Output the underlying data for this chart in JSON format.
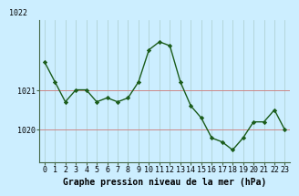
{
  "hours": [
    0,
    1,
    2,
    3,
    4,
    5,
    6,
    7,
    8,
    9,
    10,
    11,
    12,
    13,
    14,
    15,
    16,
    17,
    18,
    19,
    20,
    21,
    22,
    23
  ],
  "pressure": [
    1021.7,
    1021.2,
    1020.7,
    1021.0,
    1021.0,
    1020.7,
    1020.8,
    1020.7,
    1020.8,
    1021.2,
    1022.0,
    1022.2,
    1022.1,
    1021.2,
    1020.6,
    1020.3,
    1019.8,
    1019.7,
    1019.5,
    1019.8,
    1020.2,
    1020.2,
    1020.5,
    1020.0
  ],
  "line_color": "#1a5c1a",
  "marker": "D",
  "marker_size": 2.2,
  "bg_color": "#cceeff",
  "grid_color_h": "#cc8888",
  "grid_color_v": "#aacccc",
  "xlabel": "Graphe pression niveau de la mer (hPa)",
  "xlabel_fontsize": 7,
  "ytick_labels": [
    "1020",
    "1021"
  ],
  "ytick_values": [
    1020,
    1021
  ],
  "top_ylabel": "1022",
  "ylim": [
    1019.2,
    1022.75
  ],
  "xlim": [
    -0.5,
    23.5
  ],
  "xticks": [
    0,
    1,
    2,
    3,
    4,
    5,
    6,
    7,
    8,
    9,
    10,
    11,
    12,
    13,
    14,
    15,
    16,
    17,
    18,
    19,
    20,
    21,
    22,
    23
  ],
  "tick_fontsize": 6.0,
  "spine_color": "#446644"
}
